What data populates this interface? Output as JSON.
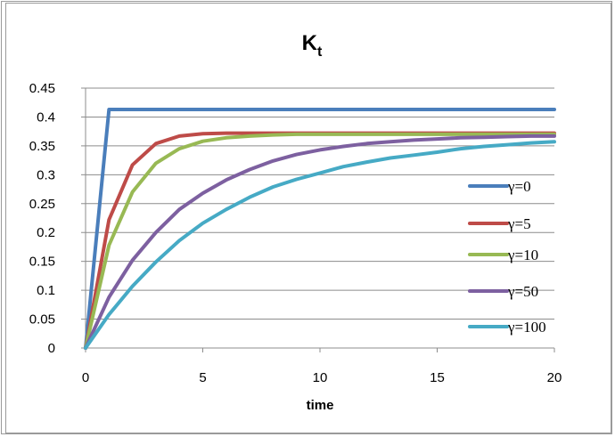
{
  "chart_data": {
    "type": "line",
    "title": "K",
    "title_subscript": "t",
    "xlabel": "time",
    "ylabel": "",
    "xlim": [
      0,
      20
    ],
    "ylim": [
      0,
      0.45
    ],
    "xticks": [
      "0",
      "5",
      "10",
      "15",
      "20"
    ],
    "yticks": [
      "0",
      "0.05",
      "0.1",
      "0.15",
      "0.2",
      "0.25",
      "0.3",
      "0.35",
      "0.4",
      "0.45"
    ],
    "grid": true,
    "legend_position": "right",
    "series": [
      {
        "name": "γ=0",
        "color": "#4A7EBB",
        "x": [
          0,
          1,
          2,
          3,
          4,
          5,
          6,
          7,
          8,
          9,
          10,
          11,
          12,
          13,
          14,
          15,
          16,
          17,
          18,
          19,
          20
        ],
        "y": [
          0,
          0.413,
          0.413,
          0.413,
          0.413,
          0.413,
          0.413,
          0.413,
          0.413,
          0.413,
          0.413,
          0.413,
          0.413,
          0.413,
          0.413,
          0.413,
          0.413,
          0.413,
          0.413,
          0.413,
          0.413
        ]
      },
      {
        "name": "γ=5",
        "color": "#BE4B48",
        "x": [
          0,
          1,
          2,
          3,
          4,
          5,
          6,
          7,
          8,
          9,
          10,
          11,
          12,
          13,
          14,
          15,
          16,
          17,
          18,
          19,
          20
        ],
        "y": [
          0,
          0.222,
          0.317,
          0.354,
          0.367,
          0.371,
          0.372,
          0.372,
          0.372,
          0.372,
          0.372,
          0.372,
          0.372,
          0.372,
          0.372,
          0.372,
          0.372,
          0.372,
          0.372,
          0.372,
          0.372
        ]
      },
      {
        "name": "γ=10",
        "color": "#98B954",
        "x": [
          0,
          1,
          2,
          3,
          4,
          5,
          6,
          7,
          8,
          9,
          10,
          11,
          12,
          13,
          14,
          15,
          16,
          17,
          18,
          19,
          20
        ],
        "y": [
          0,
          0.178,
          0.27,
          0.32,
          0.345,
          0.358,
          0.364,
          0.367,
          0.369,
          0.37,
          0.37,
          0.37,
          0.37,
          0.37,
          0.37,
          0.37,
          0.37,
          0.37,
          0.37,
          0.37,
          0.37
        ]
      },
      {
        "name": "γ=50",
        "color": "#7D60A0",
        "x": [
          0,
          1,
          2,
          3,
          4,
          5,
          6,
          7,
          8,
          9,
          10,
          11,
          12,
          13,
          14,
          15,
          16,
          17,
          18,
          19,
          20
        ],
        "y": [
          0,
          0.088,
          0.152,
          0.2,
          0.24,
          0.268,
          0.291,
          0.309,
          0.324,
          0.335,
          0.343,
          0.349,
          0.354,
          0.357,
          0.36,
          0.362,
          0.364,
          0.365,
          0.366,
          0.367,
          0.367
        ]
      },
      {
        "name": "γ=100",
        "color": "#46AAC5",
        "x": [
          0,
          1,
          2,
          3,
          4,
          5,
          6,
          7,
          8,
          9,
          10,
          11,
          12,
          13,
          14,
          15,
          16,
          17,
          18,
          19,
          20
        ],
        "y": [
          0,
          0.058,
          0.107,
          0.149,
          0.186,
          0.216,
          0.24,
          0.261,
          0.279,
          0.292,
          0.303,
          0.314,
          0.322,
          0.329,
          0.334,
          0.339,
          0.345,
          0.349,
          0.352,
          0.355,
          0.357
        ]
      }
    ]
  }
}
